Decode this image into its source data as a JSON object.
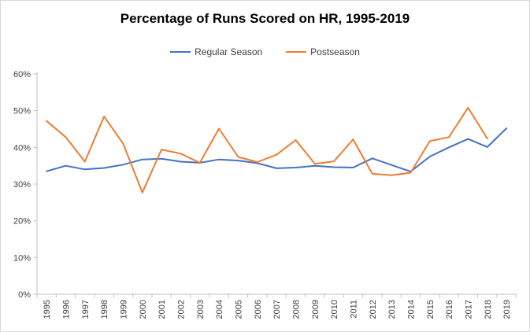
{
  "title": "Percentage of Runs Scored on HR, 1995-2019",
  "legend": {
    "items": [
      {
        "label": "Regular Season",
        "color": "#4472C4"
      },
      {
        "label": "Postseason",
        "color": "#ED7D31"
      }
    ]
  },
  "colors": {
    "axis_line": "#BFBFBF",
    "tick_label": "#404040",
    "title_text": "#000000",
    "background": "#FFFFFF",
    "border": "#D6D6D6"
  },
  "chart_data": {
    "type": "line",
    "title": "Percentage of Runs Scored on HR, 1995-2019",
    "categories": [
      "1995",
      "1996",
      "1997",
      "1998",
      "1999",
      "2000",
      "2001",
      "2002",
      "2003",
      "2004",
      "2005",
      "2006",
      "2007",
      "2008",
      "2009",
      "2010",
      "2011",
      "2012",
      "2013",
      "2014",
      "2015",
      "2016",
      "2017",
      "2018",
      "2019"
    ],
    "series": [
      {
        "name": "Regular Season",
        "color": "#4472C4",
        "values": [
          33.5,
          35.0,
          34.0,
          34.4,
          35.3,
          36.7,
          36.9,
          36.1,
          35.8,
          36.7,
          36.4,
          35.7,
          34.3,
          34.5,
          35.0,
          34.6,
          34.5,
          37.0,
          35.2,
          33.4,
          37.5,
          40.0,
          42.3,
          40.1,
          45.2
        ]
      },
      {
        "name": "Postseason",
        "color": "#ED7D31",
        "values": [
          47.2,
          42.8,
          36.1,
          48.4,
          41.0,
          27.7,
          39.4,
          38.3,
          35.8,
          45.1,
          37.4,
          36.0,
          38.0,
          42.0,
          35.5,
          36.2,
          42.2,
          32.8,
          32.4,
          33.1,
          41.7,
          42.8,
          50.8,
          42.4,
          null
        ]
      }
    ],
    "xlabel": "",
    "ylabel": "",
    "ylim": [
      0,
      60
    ],
    "ytick_step": 10,
    "ytick_labels": [
      "0%",
      "10%",
      "20%",
      "30%",
      "40%",
      "50%",
      "60%"
    ],
    "grid": false,
    "legend_position": "top",
    "x_labels_rotated": true
  }
}
